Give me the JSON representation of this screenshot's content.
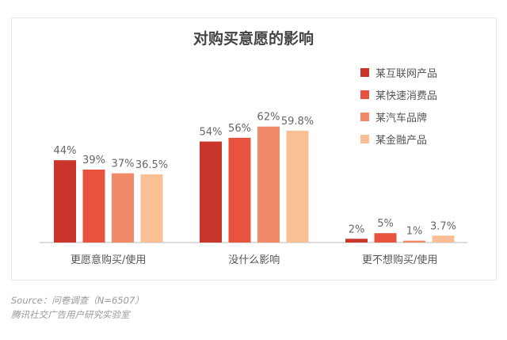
{
  "chart_data": {
    "type": "bar",
    "title": "对购买意愿的影响",
    "categories": [
      "更愿意购买/使用",
      "没什么影响",
      "更不想购买/使用"
    ],
    "series": [
      {
        "name": "某互联网产品",
        "color": "#c9352a",
        "values": [
          44,
          54,
          2
        ],
        "labels": [
          "44%",
          "54%",
          "2%"
        ]
      },
      {
        "name": "某快速消费品",
        "color": "#e8533f",
        "values": [
          39,
          56,
          5
        ],
        "labels": [
          "39%",
          "56%",
          "5%"
        ]
      },
      {
        "name": "某汽车品牌",
        "color": "#f28a6a",
        "values": [
          37,
          62,
          1
        ],
        "labels": [
          "37%",
          "62%",
          "1%"
        ]
      },
      {
        "name": "某金融产品",
        "color": "#f9bf95",
        "values": [
          36.5,
          59.8,
          3.7
        ],
        "labels": [
          "36.5%",
          "59.8%",
          "3.7%"
        ]
      }
    ],
    "xlabel": "",
    "ylabel": "",
    "ylim": [
      0,
      70
    ],
    "grid": false,
    "legend": "top-right"
  },
  "source": {
    "line1": "Source：问卷调查（N=6507）",
    "line2": "腾讯社交广告用户研究实验室"
  }
}
